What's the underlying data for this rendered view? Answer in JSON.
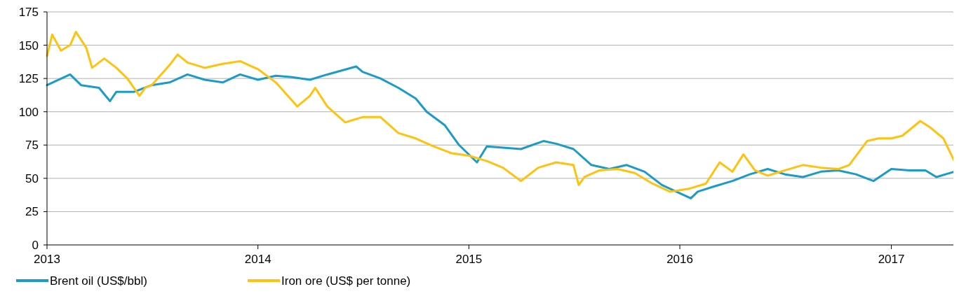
{
  "chart_data": {
    "type": "line",
    "xlim": [
      "2013-01-01",
      "2017-04-22"
    ],
    "xticks": [
      "2013",
      "2014",
      "2015",
      "2016",
      "2017"
    ],
    "ylim": [
      0,
      175
    ],
    "yticks": [
      0,
      25,
      50,
      75,
      100,
      125,
      150,
      175
    ],
    "grid": "y",
    "legend": "bottom left",
    "line_style": "solid",
    "marker": "none",
    "series": [
      {
        "name": "Brent oil (US$/bbl)",
        "color": "#1a9bc8",
        "x": [
          "2013-01-01",
          "2013-02-10",
          "2013-03-01",
          "2013-04-01",
          "2013-04-20",
          "2013-05-01",
          "2013-06-01",
          "2013-07-01",
          "2013-08-01",
          "2013-09-01",
          "2013-10-01",
          "2013-11-01",
          "2013-12-01",
          "2014-01-01",
          "2014-02-01",
          "2014-03-01",
          "2014-04-01",
          "2014-05-01",
          "2014-06-20",
          "2014-07-01",
          "2014-08-01",
          "2014-09-01",
          "2014-10-01",
          "2014-10-20",
          "2014-11-20",
          "2014-12-15",
          "2015-01-15",
          "2015-02-01",
          "2015-03-01",
          "2015-04-01",
          "2015-05-10",
          "2015-06-01",
          "2015-07-01",
          "2015-08-01",
          "2015-09-01",
          "2015-10-01",
          "2015-11-01",
          "2015-12-01",
          "2016-01-20",
          "2016-02-01",
          "2016-03-01",
          "2016-04-01",
          "2016-05-01",
          "2016-06-01",
          "2016-07-01",
          "2016-08-01",
          "2016-09-01",
          "2016-10-01",
          "2016-11-01",
          "2016-12-01",
          "2017-01-01",
          "2017-02-01",
          "2017-03-01",
          "2017-03-20",
          "2017-04-20"
        ],
        "values": [
          120,
          128,
          120,
          118,
          108,
          115,
          115,
          120,
          122,
          128,
          124,
          122,
          128,
          124,
          127,
          126,
          124,
          128,
          134,
          130,
          125,
          118,
          110,
          100,
          90,
          75,
          62,
          74,
          73,
          72,
          78,
          76,
          72,
          60,
          57,
          60,
          55,
          45,
          35,
          40,
          44,
          48,
          53,
          57,
          53,
          51,
          55,
          56,
          53,
          48,
          57,
          56,
          56,
          51,
          55
        ]
      },
      {
        "name": "Iron ore (US$ per tonne)",
        "color": "#ffc20e",
        "x": [
          "2013-01-01",
          "2013-01-10",
          "2013-01-25",
          "2013-02-10",
          "2013-02-20",
          "2013-03-10",
          "2013-03-20",
          "2013-04-10",
          "2013-05-01",
          "2013-05-20",
          "2013-06-10",
          "2013-06-20",
          "2013-07-01",
          "2013-08-01",
          "2013-08-15",
          "2013-09-01",
          "2013-10-01",
          "2013-11-01",
          "2013-12-01",
          "2014-01-01",
          "2014-02-01",
          "2014-03-10",
          "2014-04-01",
          "2014-04-10",
          "2014-05-01",
          "2014-06-01",
          "2014-07-01",
          "2014-08-01",
          "2014-09-01",
          "2014-10-01",
          "2014-11-01",
          "2014-12-01",
          "2015-01-01",
          "2015-02-01",
          "2015-03-01",
          "2015-04-01",
          "2015-05-01",
          "2015-06-01",
          "2015-07-01",
          "2015-07-10",
          "2015-07-20",
          "2015-08-15",
          "2015-09-15",
          "2015-10-15",
          "2015-11-15",
          "2015-12-15",
          "2016-01-15",
          "2016-02-15",
          "2016-03-10",
          "2016-04-01",
          "2016-04-20",
          "2016-05-10",
          "2016-06-01",
          "2016-07-01",
          "2016-08-01",
          "2016-09-01",
          "2016-10-01",
          "2016-10-20",
          "2016-11-20",
          "2016-12-10",
          "2017-01-01",
          "2017-01-20",
          "2017-02-20",
          "2017-03-10",
          "2017-04-01",
          "2017-04-20"
        ],
        "values": [
          142,
          158,
          146,
          150,
          160,
          148,
          133,
          140,
          133,
          125,
          112,
          118,
          120,
          135,
          143,
          137,
          133,
          136,
          138,
          132,
          122,
          104,
          112,
          118,
          104,
          92,
          96,
          96,
          84,
          80,
          74,
          69,
          67,
          63,
          58,
          48,
          58,
          62,
          60,
          45,
          51,
          56,
          57,
          54,
          46,
          40,
          42,
          46,
          62,
          55,
          68,
          56,
          52,
          56,
          60,
          58,
          57,
          60,
          78,
          80,
          80,
          82,
          93,
          88,
          80,
          63
        ]
      }
    ]
  }
}
